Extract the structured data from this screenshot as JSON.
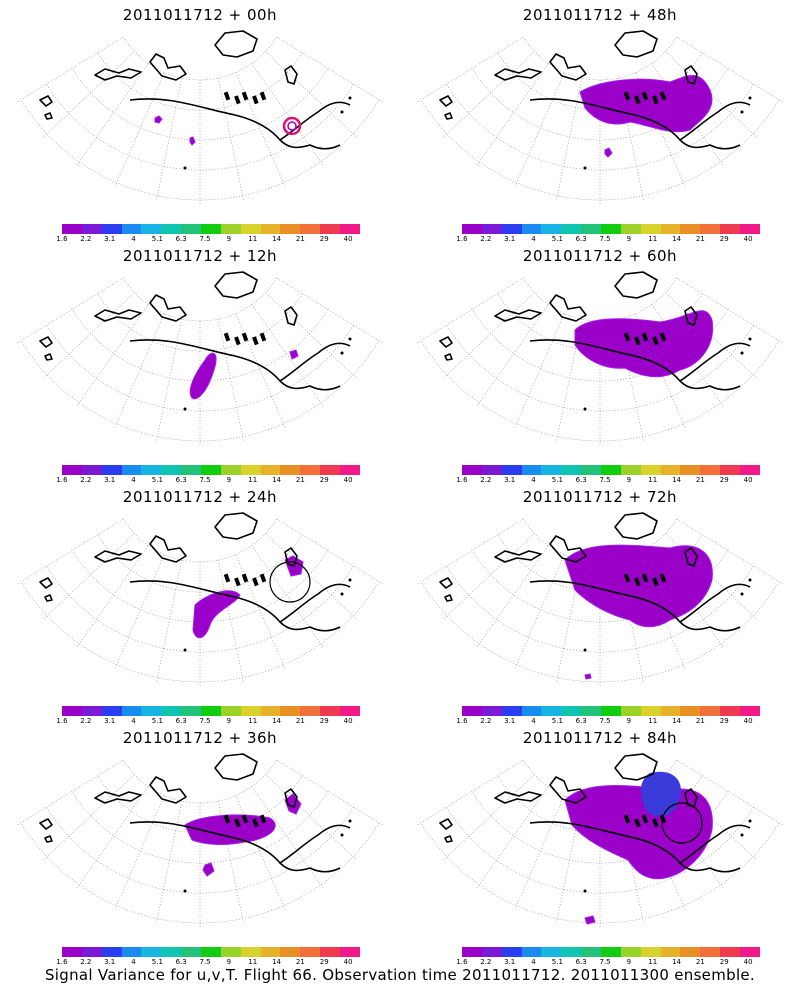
{
  "panels": [
    {
      "title": "2011011712 + 00h",
      "plume": "small",
      "markers": true,
      "circle": false
    },
    {
      "title": "2011011712 + 48h",
      "plume": "large-north",
      "markers": false,
      "circle": false
    },
    {
      "title": "2011011712 + 12h",
      "plume": "gulf",
      "markers": false,
      "circle": false
    },
    {
      "title": "2011011712 + 60h",
      "plume": "large-center",
      "markers": false,
      "circle": false
    },
    {
      "title": "2011011712 + 24h",
      "plume": "gulf-wide",
      "markers": false,
      "circle": true
    },
    {
      "title": "2011011712 + 72h",
      "plume": "large-wide",
      "markers": false,
      "circle": false
    },
    {
      "title": "2011011712 + 36h",
      "plume": "coast",
      "markers": false,
      "circle": false
    },
    {
      "title": "2011011712 + 84h",
      "plume": "large-blue",
      "markers": false,
      "circle": true
    }
  ],
  "colorbar": {
    "labels": [
      "1.6",
      "2.2",
      "3.1",
      "4",
      "5.1",
      "6.3",
      "7.5",
      "9",
      "11",
      "14",
      "21",
      "29",
      "40"
    ],
    "colors": [
      "#9b00c8",
      "#7a19d6",
      "#2a3df0",
      "#1a8cf0",
      "#19b4e6",
      "#11c4b0",
      "#22c27a",
      "#11cc11",
      "#9ad22a",
      "#d8d22a",
      "#e6b22a",
      "#e89026",
      "#f2703a",
      "#ef3a52",
      "#f01a8a"
    ]
  },
  "footer": "Signal Variance for u,v,T. Flight 66. Observation time 2011011712. 2011011300 ensemble."
}
